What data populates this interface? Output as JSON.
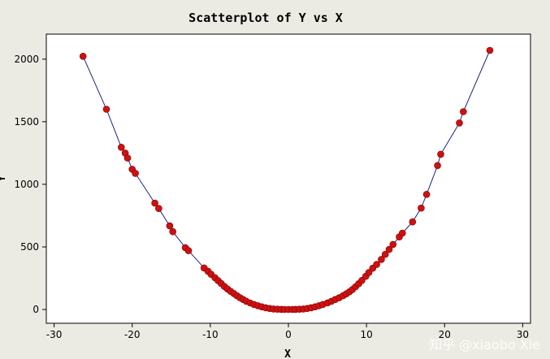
{
  "chart_data": {
    "type": "scatter",
    "title": "Scatterplot of Y vs X",
    "xlabel": "X",
    "ylabel": "Y",
    "xlim": [
      -31,
      31
    ],
    "ylim": [
      -110,
      2200
    ],
    "x_ticks": [
      -30,
      -20,
      -10,
      0,
      10,
      20,
      30
    ],
    "y_ticks": [
      0,
      500,
      1000,
      1500,
      2000
    ],
    "grid": false,
    "fit_line": true,
    "point_color": "#cc1111",
    "line_color": "#1a237e",
    "x": [
      -26.3,
      -23.3,
      -21.4,
      -20.9,
      -20.6,
      -20.0,
      -19.6,
      -17.1,
      -16.6,
      -15.2,
      -14.8,
      -13.2,
      -12.8,
      -10.8,
      -10.3,
      -9.9,
      -9.4,
      -9.0,
      -8.6,
      -8.2,
      -7.8,
      -7.4,
      -7.0,
      -6.6,
      -6.2,
      -5.8,
      -5.4,
      -4.9,
      -4.4,
      -3.9,
      -3.4,
      -2.9,
      -2.4,
      -1.9,
      -1.4,
      -0.9,
      -0.5,
      0.0,
      0.5,
      0.9,
      1.4,
      1.9,
      2.4,
      2.9,
      3.4,
      3.9,
      4.4,
      5.0,
      5.5,
      6.0,
      6.5,
      7.0,
      7.4,
      7.8,
      8.2,
      8.6,
      9.0,
      9.4,
      9.9,
      10.3,
      10.8,
      11.3,
      11.9,
      12.4,
      12.9,
      13.4,
      14.2,
      14.6,
      15.9,
      17.0,
      17.7,
      19.1,
      19.5,
      21.9,
      22.4,
      25.8
    ],
    "y": [
      2023,
      1600,
      1296,
      1250,
      1210,
      1120,
      1088,
      850,
      807,
      668,
      622,
      494,
      470,
      332,
      306,
      281,
      254,
      230,
      207,
      184,
      164,
      145,
      128,
      110,
      94,
      80,
      66,
      52,
      40,
      30,
      21,
      14,
      8,
      4,
      2,
      1,
      0,
      0,
      0,
      1,
      2,
      4,
      8,
      14,
      21,
      30,
      40,
      53,
      66,
      80,
      94,
      110,
      125,
      141,
      160,
      182,
      206,
      232,
      265,
      295,
      330,
      360,
      400,
      440,
      480,
      520,
      580,
      610,
      700,
      810,
      920,
      1150,
      1240,
      1490,
      1580,
      2070
    ]
  },
  "watermark": "知乎 @xiaobo Xie"
}
